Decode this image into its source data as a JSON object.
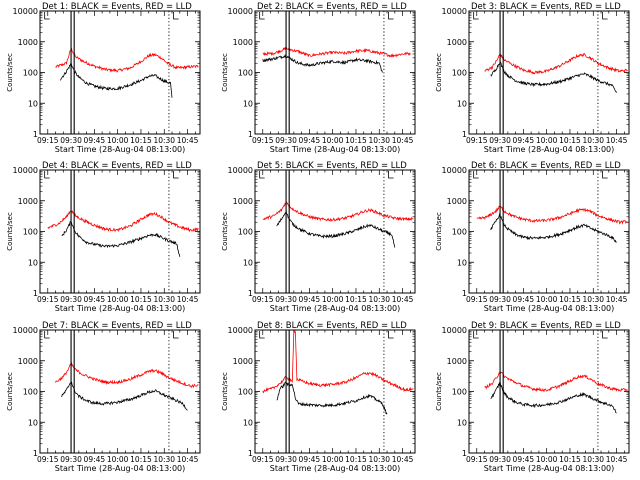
{
  "chart_data": [
    {
      "type": "line",
      "title": "Det 1: BLACK = Events, RED = LLD",
      "xlabel": "Start Time (28-Aug-04 08:13:00)",
      "ylabel": "Counts/sec",
      "ylim": [
        1,
        10000
      ],
      "yscale": "log",
      "x_ticks": [
        "09:15",
        "09:30",
        "09:45",
        "10:00",
        "10:15",
        "10:30",
        "10:45"
      ],
      "y_ticks": [
        "1",
        "10",
        "100",
        "1000",
        "10000"
      ],
      "series": [
        {
          "color": "#ff0000",
          "x": [
            "09:20",
            "09:27",
            "09:30",
            "09:33",
            "09:38",
            "09:45",
            "09:52",
            "10:00",
            "10:08",
            "10:15",
            "10:20",
            "10:24",
            "10:28",
            "10:32",
            "10:38",
            "10:45",
            "10:52"
          ],
          "y": [
            150,
            200,
            600,
            320,
            230,
            160,
            125,
            115,
            140,
            230,
            350,
            380,
            300,
            200,
            140,
            150,
            160
          ]
        },
        {
          "color": "#000000",
          "x": [
            "09:23",
            "09:26",
            "09:29",
            "09:30",
            "09:32",
            "09:35",
            "09:40",
            "09:45",
            "09:52",
            "10:00",
            "10:08",
            "10:15",
            "10:20",
            "10:24",
            "10:28",
            "10:31",
            "10:34",
            "10:35"
          ],
          "y": [
            60,
            90,
            160,
            200,
            110,
            70,
            45,
            36,
            30,
            30,
            40,
            55,
            75,
            80,
            60,
            50,
            45,
            15
          ]
        }
      ]
    },
    {
      "type": "line",
      "title": "Det 2: BLACK = Events, RED = LLD",
      "xlabel": "Start Time (28-Aug-04 08:13:00)",
      "ylabel": "Counts/sec",
      "ylim": [
        1,
        10000
      ],
      "yscale": "log",
      "x_ticks": [
        "09:15",
        "09:30",
        "09:45",
        "10:00",
        "10:15",
        "10:30",
        "10:45"
      ],
      "y_ticks": [
        "1",
        "10",
        "100",
        "1000",
        "10000"
      ],
      "series": [
        {
          "color": "#ff0000",
          "x": [
            "09:15",
            "09:22",
            "09:30",
            "09:38",
            "09:45",
            "09:52",
            "10:00",
            "10:08",
            "10:15",
            "10:22",
            "10:30",
            "10:38",
            "10:45",
            "10:50"
          ],
          "y": [
            400,
            420,
            600,
            480,
            350,
            400,
            450,
            420,
            500,
            520,
            430,
            350,
            400,
            420
          ]
        },
        {
          "color": "#000000",
          "x": [
            "09:15",
            "09:22",
            "09:30",
            "09:38",
            "09:45",
            "09:52",
            "10:00",
            "10:08",
            "10:15",
            "10:22",
            "10:30",
            "10:32"
          ],
          "y": [
            250,
            280,
            350,
            200,
            170,
            200,
            230,
            210,
            260,
            240,
            200,
            100
          ]
        }
      ]
    },
    {
      "type": "line",
      "title": "Det 3: BLACK = Events, RED = LLD",
      "xlabel": "Start Time (28-Aug-04 08:13:00)",
      "ylabel": "Counts/sec",
      "ylim": [
        1,
        10000
      ],
      "yscale": "log",
      "x_ticks": [
        "09:15",
        "09:30",
        "09:45",
        "10:00",
        "10:15",
        "10:30",
        "10:45"
      ],
      "y_ticks": [
        "1",
        "10",
        "100",
        "1000",
        "10000"
      ],
      "series": [
        {
          "color": "#ff0000",
          "x": [
            "09:20",
            "09:25",
            "09:28",
            "09:30",
            "09:33",
            "09:38",
            "09:45",
            "09:52",
            "10:00",
            "10:08",
            "10:15",
            "10:20",
            "10:24",
            "10:28",
            "10:33",
            "10:40",
            "10:47",
            "10:52"
          ],
          "y": [
            110,
            150,
            250,
            400,
            250,
            180,
            120,
            100,
            110,
            160,
            250,
            350,
            380,
            300,
            200,
            140,
            110,
            120
          ]
        },
        {
          "color": "#000000",
          "x": [
            "09:24",
            "09:27",
            "09:29",
            "09:30",
            "09:32",
            "09:35",
            "09:40",
            "09:45",
            "09:52",
            "10:00",
            "10:08",
            "10:15",
            "10:20",
            "10:24",
            "10:28",
            "10:33",
            "10:38",
            "10:42",
            "10:45"
          ],
          "y": [
            80,
            120,
            180,
            230,
            120,
            80,
            55,
            45,
            40,
            42,
            50,
            65,
            80,
            90,
            75,
            55,
            45,
            38,
            22
          ]
        }
      ]
    },
    {
      "type": "line",
      "title": "Det 4: BLACK = Events, RED = LLD",
      "xlabel": "Start Time (28-Aug-04 08:13:00)",
      "ylabel": "Counts/sec",
      "ylim": [
        1,
        10000
      ],
      "yscale": "log",
      "x_ticks": [
        "09:15",
        "09:30",
        "09:45",
        "10:00",
        "10:15",
        "10:30",
        "10:45"
      ],
      "y_ticks": [
        "1",
        "10",
        "100",
        "1000",
        "10000"
      ],
      "series": [
        {
          "color": "#ff0000",
          "x": [
            "09:15",
            "09:22",
            "09:27",
            "09:30",
            "09:33",
            "09:38",
            "09:45",
            "09:52",
            "10:00",
            "10:08",
            "10:15",
            "10:20",
            "10:24",
            "10:28",
            "10:33",
            "10:40",
            "10:47",
            "10:52"
          ],
          "y": [
            130,
            180,
            300,
            500,
            320,
            230,
            160,
            120,
            110,
            150,
            250,
            350,
            380,
            300,
            200,
            140,
            110,
            120
          ]
        },
        {
          "color": "#000000",
          "x": [
            "09:24",
            "09:27",
            "09:29",
            "09:30",
            "09:32",
            "09:35",
            "09:40",
            "09:45",
            "09:52",
            "10:00",
            "10:08",
            "10:15",
            "10:20",
            "10:24",
            "10:28",
            "10:33",
            "10:38",
            "10:40"
          ],
          "y": [
            70,
            110,
            170,
            220,
            110,
            70,
            45,
            38,
            33,
            35,
            45,
            60,
            75,
            80,
            65,
            50,
            40,
            15
          ]
        }
      ]
    },
    {
      "type": "line",
      "title": "Det 5: BLACK = Events, RED = LLD",
      "xlabel": "Start Time (28-Aug-04 08:13:00)",
      "ylabel": "Counts/sec",
      "ylim": [
        1,
        10000
      ],
      "yscale": "log",
      "x_ticks": [
        "09:15",
        "09:30",
        "09:45",
        "10:00",
        "10:15",
        "10:30",
        "10:45"
      ],
      "y_ticks": [
        "1",
        "10",
        "100",
        "1000",
        "10000"
      ],
      "series": [
        {
          "color": "#ff0000",
          "x": [
            "09:15",
            "09:22",
            "09:27",
            "09:30",
            "09:33",
            "09:38",
            "09:45",
            "09:52",
            "10:00",
            "10:08",
            "10:15",
            "10:20",
            "10:24",
            "10:28",
            "10:33",
            "10:40",
            "10:47",
            "10:52"
          ],
          "y": [
            250,
            320,
            500,
            900,
            600,
            420,
            300,
            250,
            240,
            270,
            350,
            450,
            500,
            430,
            330,
            270,
            250,
            260
          ]
        },
        {
          "color": "#000000",
          "x": [
            "09:24",
            "09:27",
            "09:29",
            "09:30",
            "09:32",
            "09:35",
            "09:40",
            "09:45",
            "09:52",
            "10:00",
            "10:08",
            "10:15",
            "10:20",
            "10:24",
            "10:28",
            "10:33",
            "10:38",
            "10:40"
          ],
          "y": [
            150,
            250,
            380,
            450,
            250,
            160,
            110,
            85,
            70,
            70,
            85,
            110,
            140,
            160,
            130,
            100,
            80,
            30
          ]
        }
      ]
    },
    {
      "type": "line",
      "title": "Det 6: BLACK = Events, RED = LLD",
      "xlabel": "Start Time (28-Aug-04 08:13:00)",
      "ylabel": "Counts/sec",
      "ylim": [
        1,
        10000
      ],
      "yscale": "log",
      "x_ticks": [
        "09:15",
        "09:30",
        "09:45",
        "10:00",
        "10:15",
        "10:30",
        "10:45"
      ],
      "y_ticks": [
        "1",
        "10",
        "100",
        "1000",
        "10000"
      ],
      "series": [
        {
          "color": "#ff0000",
          "x": [
            "09:15",
            "09:22",
            "09:27",
            "09:30",
            "09:33",
            "09:38",
            "09:45",
            "09:52",
            "10:00",
            "10:08",
            "10:15",
            "10:20",
            "10:24",
            "10:28",
            "10:33",
            "10:40",
            "10:47",
            "10:52"
          ],
          "y": [
            250,
            300,
            450,
            650,
            450,
            320,
            250,
            220,
            230,
            280,
            380,
            480,
            520,
            450,
            330,
            250,
            200,
            210
          ]
        },
        {
          "color": "#000000",
          "x": [
            "09:24",
            "09:27",
            "09:29",
            "09:30",
            "09:32",
            "09:35",
            "09:40",
            "09:45",
            "09:52",
            "10:00",
            "10:08",
            "10:15",
            "10:20",
            "10:24",
            "10:28",
            "10:33",
            "10:38",
            "10:42",
            "10:45"
          ],
          "y": [
            120,
            200,
            300,
            350,
            180,
            120,
            80,
            65,
            60,
            65,
            80,
            110,
            140,
            160,
            130,
            100,
            80,
            65,
            45
          ]
        }
      ]
    },
    {
      "type": "line",
      "title": "Det 7: BLACK = Events, RED = LLD",
      "xlabel": "Start Time (28-Aug-04 08:13:00)",
      "ylabel": "Counts/sec",
      "ylim": [
        1,
        10000
      ],
      "yscale": "log",
      "x_ticks": [
        "09:15",
        "09:30",
        "09:45",
        "10:00",
        "10:15",
        "10:30",
        "10:45"
      ],
      "y_ticks": [
        "1",
        "10",
        "100",
        "1000",
        "10000"
      ],
      "series": [
        {
          "color": "#ff0000",
          "x": [
            "09:20",
            "09:25",
            "09:28",
            "09:30",
            "09:33",
            "09:38",
            "09:45",
            "09:52",
            "10:00",
            "10:08",
            "10:15",
            "10:20",
            "10:24",
            "10:28",
            "10:33",
            "10:40",
            "10:47",
            "10:52"
          ],
          "y": [
            200,
            300,
            500,
            800,
            500,
            350,
            250,
            200,
            200,
            250,
            350,
            450,
            480,
            400,
            280,
            200,
            150,
            160
          ]
        },
        {
          "color": "#000000",
          "x": [
            "09:24",
            "09:27",
            "09:29",
            "09:30",
            "09:32",
            "09:35",
            "09:40",
            "09:45",
            "09:52",
            "10:00",
            "10:08",
            "10:15",
            "10:20",
            "10:24",
            "10:28",
            "10:33",
            "10:38",
            "10:42",
            "10:45"
          ],
          "y": [
            70,
            110,
            170,
            220,
            110,
            70,
            50,
            42,
            40,
            45,
            55,
            75,
            95,
            105,
            85,
            65,
            50,
            40,
            25
          ]
        }
      ]
    },
    {
      "type": "line",
      "title": "Det 8: BLACK = Events, RED = LLD",
      "xlabel": "Start Time (28-Aug-04 08:13:00)",
      "ylabel": "Counts/sec",
      "ylim": [
        1,
        10000
      ],
      "yscale": "log",
      "x_ticks": [
        "09:15",
        "09:30",
        "09:45",
        "10:00",
        "10:15",
        "10:30",
        "10:45"
      ],
      "y_ticks": [
        "1",
        "10",
        "100",
        "1000",
        "10000"
      ],
      "series": [
        {
          "color": "#ff0000",
          "x": [
            "09:15",
            "09:22",
            "09:27",
            "09:30",
            "09:32",
            "09:34",
            "09:35",
            "09:36",
            "09:37",
            "09:40",
            "09:45",
            "09:52",
            "10:00",
            "10:08",
            "10:15",
            "10:20",
            "10:24",
            "10:28",
            "10:33",
            "10:40",
            "10:47",
            "10:52"
          ],
          "y": [
            100,
            130,
            200,
            300,
            250,
            200,
            9000,
            9000,
            250,
            220,
            180,
            160,
            170,
            200,
            280,
            380,
            400,
            330,
            230,
            160,
            110,
            120
          ]
        },
        {
          "color": "#000000",
          "x": [
            "09:24",
            "09:26",
            "09:28",
            "09:30",
            "09:32",
            "09:34",
            "09:36",
            "09:38",
            "09:42",
            "09:48",
            "09:55",
            "10:02",
            "10:08",
            "10:15",
            "10:20",
            "10:24",
            "10:28",
            "10:32",
            "10:35"
          ],
          "y": [
            50,
            120,
            150,
            200,
            150,
            180,
            60,
            40,
            38,
            36,
            35,
            37,
            42,
            50,
            65,
            72,
            55,
            40,
            18
          ]
        }
      ]
    },
    {
      "type": "line",
      "title": "Det 9: BLACK = Events, RED = LLD",
      "xlabel": "Start Time (28-Aug-04 08:13:00)",
      "ylabel": "Counts/sec",
      "ylim": [
        1,
        10000
      ],
      "yscale": "log",
      "x_ticks": [
        "09:15",
        "09:30",
        "09:45",
        "10:00",
        "10:15",
        "10:30",
        "10:45"
      ],
      "y_ticks": [
        "1",
        "10",
        "100",
        "1000",
        "10000"
      ],
      "series": [
        {
          "color": "#ff0000",
          "x": [
            "09:20",
            "09:25",
            "09:28",
            "09:30",
            "09:33",
            "09:38",
            "09:45",
            "09:52",
            "10:00",
            "10:08",
            "10:15",
            "10:20",
            "10:24",
            "10:28",
            "10:33",
            "10:40",
            "10:47",
            "10:52"
          ],
          "y": [
            130,
            180,
            300,
            450,
            300,
            220,
            150,
            120,
            110,
            150,
            220,
            300,
            320,
            260,
            180,
            130,
            110,
            115
          ]
        },
        {
          "color": "#000000",
          "x": [
            "09:24",
            "09:27",
            "09:29",
            "09:30",
            "09:32",
            "09:35",
            "09:40",
            "09:45",
            "09:52",
            "10:00",
            "10:08",
            "10:15",
            "10:20",
            "10:24",
            "10:28",
            "10:33",
            "10:38",
            "10:42",
            "10:45"
          ],
          "y": [
            60,
            100,
            160,
            200,
            100,
            65,
            45,
            38,
            35,
            37,
            45,
            60,
            75,
            80,
            65,
            50,
            40,
            35,
            20
          ]
        }
      ]
    }
  ]
}
